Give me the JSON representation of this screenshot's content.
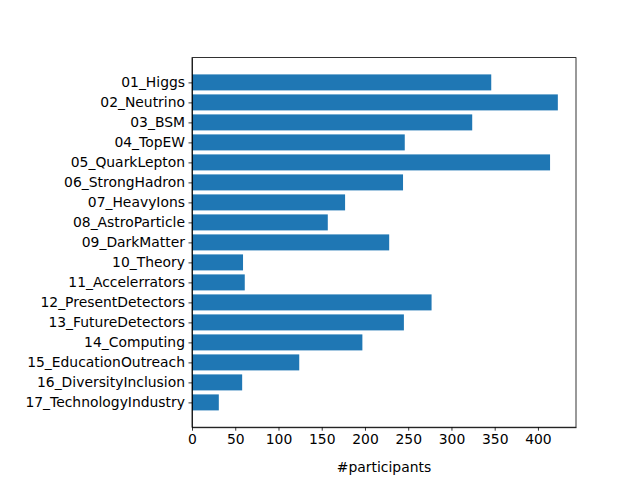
{
  "chart_data": {
    "type": "bar",
    "orientation": "horizontal",
    "x_label": "#participants",
    "categories": [
      "01_Higgs",
      "02_Neutrino",
      "03_BSM",
      "04_TopEW",
      "05_QuarkLepton",
      "06_StrongHadron",
      "07_HeavyIons",
      "08_AstroParticle",
      "09_DarkMatter",
      "10_Theory",
      "11_Accelerrators",
      "12_PresentDetectors",
      "13_FutureDetectors",
      "14_Computing",
      "15_EducationOutreach",
      "16_DiversityInclusion",
      "17_TechnologyIndustry"
    ],
    "values": [
      346,
      423,
      324,
      246,
      414,
      244,
      177,
      157,
      228,
      59,
      61,
      277,
      245,
      197,
      124,
      58,
      31
    ],
    "color": "#1f77b4",
    "xlim": [
      0,
      444
    ],
    "xticks": [
      0,
      50,
      100,
      150,
      200,
      250,
      300,
      350,
      400
    ],
    "grid": false
  }
}
